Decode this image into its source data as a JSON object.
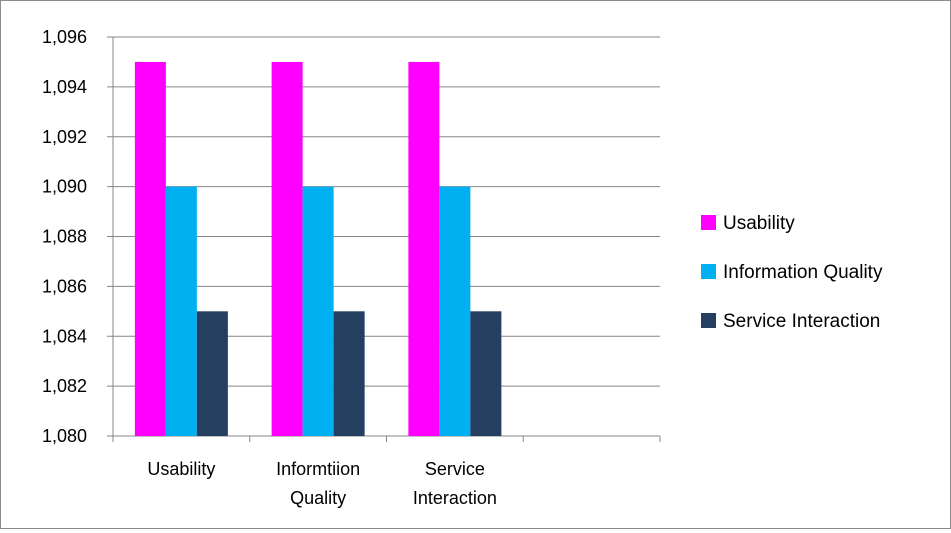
{
  "chart_data": {
    "type": "bar",
    "categories": [
      [
        "Usability"
      ],
      [
        "Informtiion",
        "Quality"
      ],
      [
        "Service",
        "Interaction"
      ],
      [
        ""
      ]
    ],
    "series": [
      {
        "name": "Usability",
        "color": "#ff00ff",
        "values": [
          1.095,
          1.095,
          1.095,
          null
        ]
      },
      {
        "name": "Information Quality",
        "color": "#00b0f0",
        "values": [
          1.09,
          1.09,
          1.09,
          null
        ]
      },
      {
        "name": "Service Interaction",
        "color": "#243f60",
        "values": [
          1.085,
          1.085,
          1.085,
          null
        ]
      }
    ],
    "ylim": [
      1.08,
      1.096
    ],
    "yticks": [
      "1,080",
      "1,082",
      "1,084",
      "1,086",
      "1,088",
      "1,090",
      "1,092",
      "1,094",
      "1,096"
    ],
    "grid": true,
    "legend_position": "right",
    "title": "",
    "xlabel": "",
    "ylabel": ""
  }
}
